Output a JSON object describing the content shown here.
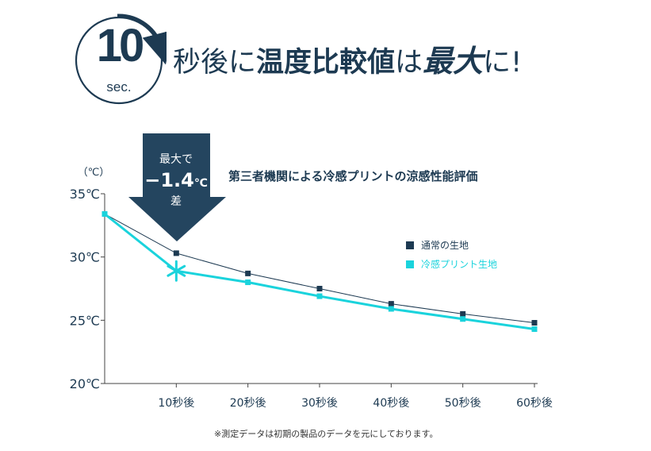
{
  "headline": {
    "badge_number": "10",
    "badge_unit": "sec.",
    "part1": "秒後に",
    "part2": "温度比較値",
    "part3": "は",
    "part4": "最大",
    "part5": "に!"
  },
  "callout": {
    "line1": "最大で",
    "value": "−1.4",
    "unit": "℃",
    "line3": "差"
  },
  "colors": {
    "navy": "#1d3a52",
    "cyan": "#1ad3dc",
    "arrow": "#24455f"
  },
  "footnote": "※測定データは初期の製品のデータを元にしております。",
  "chart_data": {
    "type": "line",
    "title": "第三者機関による冷感プリントの涼感性能評価",
    "ylabel": "（℃）",
    "categories": [
      "",
      "10秒後",
      "20秒後",
      "30秒後",
      "40秒後",
      "50秒後",
      "60秒後"
    ],
    "y_ticks": [
      "35℃",
      "30℃",
      "25℃",
      "20℃"
    ],
    "y_tick_values": [
      35,
      30,
      25,
      20
    ],
    "ylim": [
      20,
      35
    ],
    "legend_position": "right",
    "series": [
      {
        "name": "通常の生地",
        "color": "#1d3a52",
        "values": [
          33.4,
          30.3,
          28.7,
          27.5,
          26.3,
          25.5,
          24.8
        ]
      },
      {
        "name": "冷感プリント生地",
        "color": "#1ad3dc",
        "values": [
          33.4,
          28.9,
          28.0,
          26.9,
          25.9,
          25.1,
          24.3
        ]
      }
    ]
  }
}
